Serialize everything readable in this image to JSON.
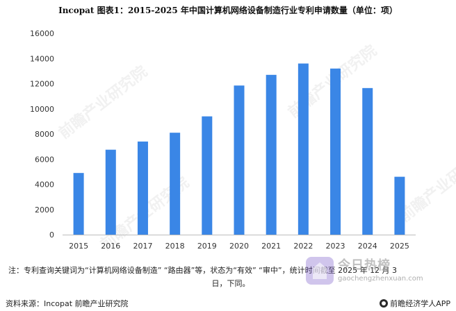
{
  "chart_data": {
    "type": "bar",
    "title": "Incopat  图表1：2015-2025 年中国计算机网络设备制造行业专利申请数量（单位：项）",
    "categories": [
      "2015",
      "2016",
      "2017",
      "2018",
      "2019",
      "2020",
      "2021",
      "2022",
      "2023",
      "2024",
      "2025"
    ],
    "values": [
      4900,
      6750,
      7400,
      8100,
      9400,
      11850,
      12700,
      13600,
      13200,
      11650,
      4600
    ],
    "ylim": [
      0,
      16000
    ],
    "yticks": [
      "0",
      "2000",
      "4000",
      "6000",
      "8000",
      "10000",
      "12000",
      "14000",
      "16000"
    ],
    "bar_color": "#3a86e6",
    "grid": false,
    "legend": "none"
  },
  "note": {
    "line1": "注：专利查询关键词为“计算机网络设备制造” “路由器”等，状态为“有效” “审中”，统计时间截至 2025 年 12 月 3",
    "line2": "日，下同。"
  },
  "footer": {
    "source": "资料来源：Incopat 前瞻产业研究院",
    "brand": "前瞻经济学人APP"
  },
  "watermark": {
    "text": "前瞻产业研究院"
  },
  "overlay": {
    "text1": "今日热榜",
    "text2": "gaochengzhenxuan.com"
  }
}
